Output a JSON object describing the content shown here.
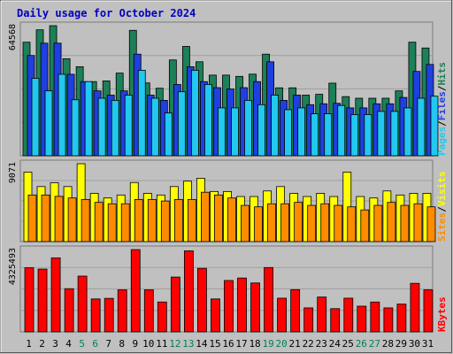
{
  "chart_data": {
    "type": "bar",
    "title": "Daily usage for October 2024",
    "days": [
      1,
      2,
      3,
      4,
      5,
      6,
      7,
      8,
      9,
      10,
      11,
      12,
      13,
      14,
      15,
      16,
      17,
      18,
      19,
      20,
      21,
      22,
      23,
      24,
      25,
      26,
      27,
      28,
      29,
      30,
      31
    ],
    "weekend_days": [
      5,
      6,
      12,
      13,
      19,
      20,
      26,
      27
    ],
    "panels": [
      {
        "name": "hits-files-pages",
        "y_max_label": "64568",
        "ylim": [
          0,
          64568
        ],
        "legend": [
          "Pages",
          "Files",
          "Hits"
        ],
        "legend_separator": "/",
        "series": [
          {
            "name": "Hits",
            "color": "#1c8058",
            "values": [
              56360,
              62500,
              64568,
              48150,
              44190,
              36800,
              37150,
              41040,
              62260,
              36150,
              33530,
              47560,
              54260,
              46640,
              40020,
              40020,
              39390,
              40510,
              50420,
              33720,
              33720,
              30090,
              30510,
              36040,
              29360,
              28550,
              28550,
              28550,
              32210,
              56360,
              53480
            ]
          },
          {
            "name": "Files",
            "color": "#1e40e0",
            "values": [
              49750,
              55880,
              55880,
              40440,
              36800,
              32210,
              30090,
              32210,
              50420,
              30090,
              27490,
              35370,
              44190,
              36800,
              33800,
              33130,
              33800,
              36800,
              46640,
              27490,
              30090,
              25350,
              25800,
              26020,
              23760,
              23760,
              25800,
              25800,
              28950,
              41850,
              45310
            ]
          },
          {
            "name": "Pages",
            "color": "#22c8f0",
            "values": [
              38440,
              32210,
              40440,
              27780,
              36800,
              28550,
              27490,
              30090,
              42430,
              28550,
              21220,
              31770,
              42430,
              35370,
              23760,
              23760,
              27490,
              25350,
              30090,
              22870,
              23760,
              20830,
              20830,
              24960,
              20440,
              20440,
              22010,
              22010,
              23760,
              28550,
              29560
            ]
          }
        ]
      },
      {
        "name": "visits-sites",
        "y_max_label": "9071",
        "ylim": [
          0,
          9071
        ],
        "legend": [
          "Sites",
          "Visits"
        ],
        "legend_separator": "/",
        "series": [
          {
            "name": "Visits",
            "color": "#ffff00",
            "values": [
              8100,
              6410,
              6850,
              6410,
              9071,
              5620,
              5080,
              5430,
              6880,
              5620,
              5430,
              6410,
              7040,
              7380,
              5840,
              5840,
              5250,
              5250,
              5900,
              6410,
              5620,
              5250,
              5620,
              5250,
              8100,
              5250,
              5080,
              5900,
              5430,
              5620,
              5620
            ]
          },
          {
            "name": "Sites",
            "color": "#ff8c00",
            "values": [
              5430,
              5430,
              5270,
              5080,
              4910,
              4570,
              4410,
              4410,
              4910,
              4910,
              4730,
              4910,
              4910,
              5750,
              5430,
              5080,
              4220,
              4050,
              4410,
              4410,
              4570,
              4220,
              4410,
              4220,
              4050,
              3690,
              4220,
              4570,
              4220,
              4410,
              4050
            ]
          }
        ]
      },
      {
        "name": "kbytes",
        "y_max_label": "4325493",
        "ylim": [
          0,
          4325493
        ],
        "legend": [
          "KBytes"
        ],
        "legend_separator": "/",
        "series": [
          {
            "name": "KBytes",
            "color": "#ff0000",
            "values": [
              3370000,
              3300000,
              3890000,
              2270000,
              2930000,
              1730000,
              1760000,
              2210000,
              4325000,
              2210000,
              1570000,
              2880000,
              4260000,
              3340000,
              1730000,
              2700000,
              2830000,
              2570000,
              3380000,
              1770000,
              2220000,
              1260000,
              1830000,
              1220000,
              1770000,
              1350000,
              1570000,
              1260000,
              1460000,
              2550000,
              2210000
            ]
          }
        ]
      }
    ]
  }
}
